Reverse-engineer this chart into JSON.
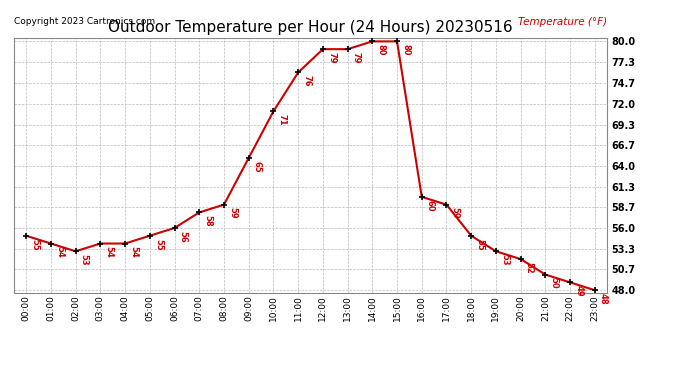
{
  "title": "Outdoor Temperature per Hour (24 Hours) 20230516",
  "copyright_text": "Copyright 2023 Cartronics.com",
  "legend_label": "Temperature (°F)",
  "hours": [
    "00:00",
    "01:00",
    "02:00",
    "03:00",
    "04:00",
    "05:00",
    "06:00",
    "07:00",
    "08:00",
    "09:00",
    "10:00",
    "11:00",
    "12:00",
    "13:00",
    "14:00",
    "15:00",
    "16:00",
    "17:00",
    "18:00",
    "19:00",
    "20:00",
    "21:00",
    "22:00",
    "23:00"
  ],
  "temps": [
    55,
    54,
    53,
    54,
    54,
    55,
    56,
    58,
    59,
    65,
    71,
    76,
    79,
    79,
    80,
    80,
    60,
    59,
    55,
    53,
    52,
    50,
    49,
    48
  ],
  "temps_labels": [
    "55",
    "54",
    "53",
    "54",
    "54",
    "55",
    "56",
    "58",
    "59",
    "65",
    "71",
    "76",
    "79",
    "79",
    "80",
    "80",
    "60",
    "59",
    "55",
    "53",
    "52",
    "50",
    "49",
    "48"
  ],
  "line_color": "#cc0000",
  "marker_color": "#000000",
  "grid_color": "#bbbbbb",
  "background_color": "#ffffff",
  "title_fontsize": 11,
  "ylim_min": 48.0,
  "ylim_max": 80.0,
  "ytick_values": [
    48.0,
    50.7,
    53.3,
    56.0,
    58.7,
    61.3,
    64.0,
    66.7,
    69.3,
    72.0,
    74.7,
    77.3,
    80.0
  ],
  "ytick_labels": [
    "48.0",
    "50.7",
    "53.3",
    "56.0",
    "58.7",
    "61.3",
    "64.0",
    "66.7",
    "69.3",
    "72.0",
    "74.7",
    "77.3",
    "80.0"
  ]
}
